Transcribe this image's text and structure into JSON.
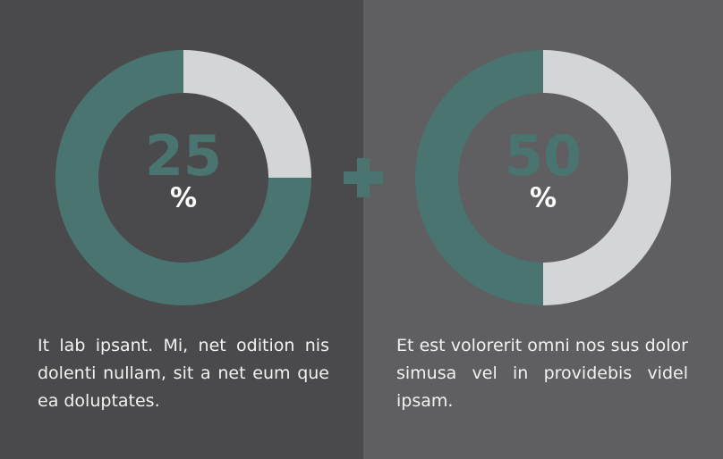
{
  "chart_data": [
    {
      "type": "donut",
      "values": [
        25,
        75
      ],
      "colors": [
        "#d4d5d7",
        "#4a7470"
      ],
      "unit": "%",
      "caption": "It lab ipsant. Mi, net odition nis dolenti nullam, sit a net eum que ea doluptates."
    },
    {
      "type": "donut",
      "values": [
        50,
        50
      ],
      "colors": [
        "#d4d5d7",
        "#4a7470"
      ],
      "unit": "%",
      "caption": "Et est volorerit omni nos sus dolor simusa vel in providebis videl ipsam."
    }
  ]
}
